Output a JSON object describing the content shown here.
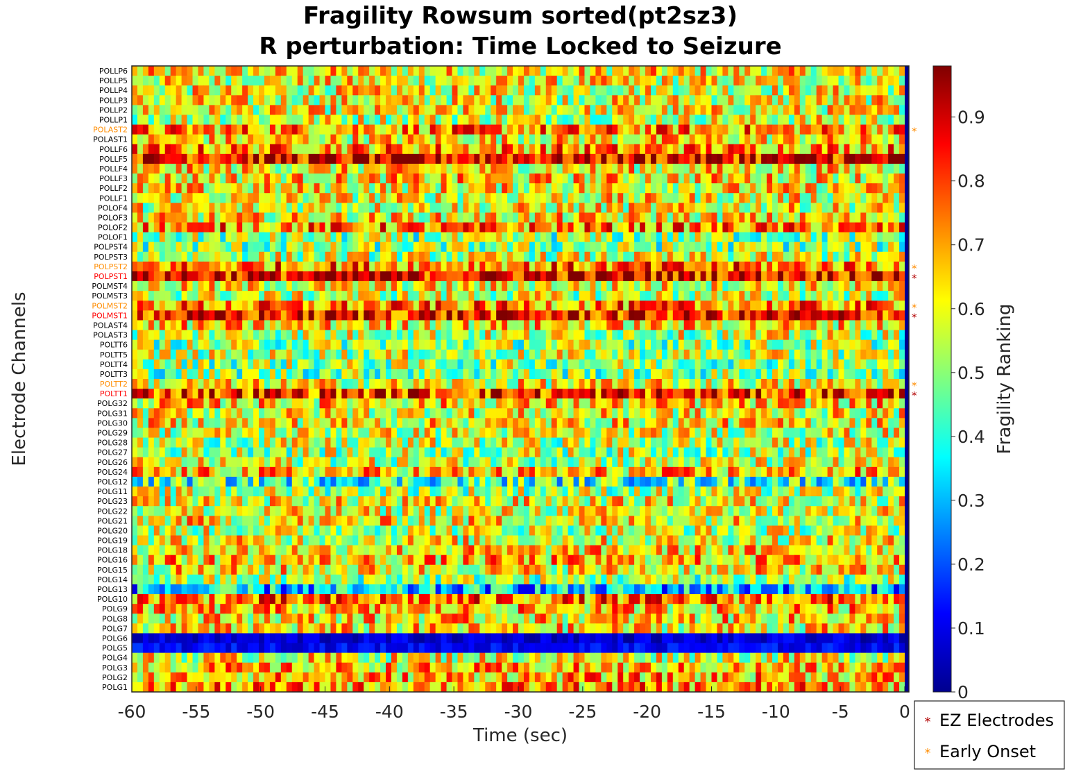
{
  "chart_data": {
    "type": "heatmap",
    "title": "Fragility Rowsum sorted(pt2sz3)",
    "subtitle": "R perturbation:  Time Locked to Seizure",
    "xlabel": "Time (sec)",
    "ylabel": "Electrode Channels",
    "xlim": [
      -60,
      0
    ],
    "xticks": [
      "-60",
      "-55",
      "-50",
      "-45",
      "-40",
      "-35",
      "-30",
      "-25",
      "-20",
      "-15",
      "-10",
      "-5",
      "0"
    ],
    "colorbar": {
      "label": "Fragility Ranking",
      "range": [
        0,
        0.98
      ],
      "colormap": "jet",
      "ticks": [
        "0",
        "0.1",
        "0.2",
        "0.3",
        "0.4",
        "0.5",
        "0.6",
        "0.7",
        "0.8",
        "0.9"
      ]
    },
    "channels": [
      "POLLP6",
      "POLLP5",
      "POLLP4",
      "POLLP3",
      "POLLP2",
      "POLLP1",
      "POLAST2",
      "POLAST1",
      "POLLF6",
      "POLLF5",
      "POLLF4",
      "POLLF3",
      "POLLF2",
      "POLLF1",
      "POLOF4",
      "POLOF3",
      "POLOF2",
      "POLOF1",
      "POLPST4",
      "POLPST3",
      "POLPST2",
      "POLPST1",
      "POLMST4",
      "POLMST3",
      "POLMST2",
      "POLMST1",
      "POLAST4",
      "POLAST3",
      "POLTT6",
      "POLTT5",
      "POLTT4",
      "POLTT3",
      "POLTT2",
      "POLTT1",
      "POLG32",
      "POLG31",
      "POLG30",
      "POLG29",
      "POLG28",
      "POLG27",
      "POLG26",
      "POLG24",
      "POLG12",
      "POLG11",
      "POLG23",
      "POLG22",
      "POLG21",
      "POLG20",
      "POLG19",
      "POLG18",
      "POLG16",
      "POLG15",
      "POLG14",
      "POLG13",
      "POLG10",
      "POLG9",
      "POLG8",
      "POLG7",
      "POLG6",
      "POLG5",
      "POLG4",
      "POLG3",
      "POLG2",
      "POLG1"
    ],
    "ez_electrodes": [
      "POLPST1",
      "POLMST1",
      "POLTT1"
    ],
    "early_onset": [
      "POLAST2",
      "POLPST2",
      "POLMST2",
      "POLTT2"
    ],
    "channel_mean_fragility": [
      0.62,
      0.6,
      0.6,
      0.6,
      0.6,
      0.58,
      0.72,
      0.63,
      0.72,
      0.88,
      0.62,
      0.64,
      0.62,
      0.6,
      0.6,
      0.62,
      0.72,
      0.5,
      0.5,
      0.56,
      0.74,
      0.88,
      0.6,
      0.56,
      0.72,
      0.84,
      0.64,
      0.56,
      0.52,
      0.55,
      0.52,
      0.5,
      0.6,
      0.82,
      0.64,
      0.6,
      0.62,
      0.58,
      0.55,
      0.54,
      0.56,
      0.66,
      0.42,
      0.54,
      0.6,
      0.58,
      0.62,
      0.56,
      0.6,
      0.64,
      0.66,
      0.62,
      0.52,
      0.3,
      0.74,
      0.66,
      0.64,
      0.62,
      0.08,
      0.12,
      0.6,
      0.66,
      0.68,
      0.7
    ],
    "legend": {
      "location": "bottom-right",
      "entries": [
        {
          "label": "EZ Electrodes",
          "marker": "*",
          "color": "#b20000"
        },
        {
          "label": "Early Onset",
          "marker": "*",
          "color": "#ff8c00"
        }
      ]
    },
    "colors": {
      "ez_label": "#ff0000",
      "early_label": "#ff8c00",
      "normal_label": "#000000"
    }
  }
}
